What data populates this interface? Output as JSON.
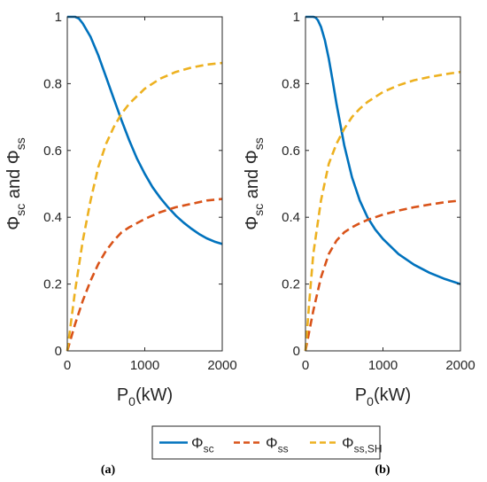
{
  "chart_data": [
    {
      "panel_label": "(a)",
      "type": "line",
      "xlabel": "P",
      "xlabel_sub": "0",
      "xlabel_unit": "(kW)",
      "ylabel_a": "Φ",
      "ylabel_a_sub": "sc",
      "ylabel_mid": " and ",
      "ylabel_b": "Φ",
      "ylabel_b_sub": "ss",
      "xlim": [
        0,
        2000
      ],
      "ylim": [
        0,
        1
      ],
      "xticks": [
        "0",
        "1000",
        "2000"
      ],
      "yticks": [
        "0",
        "0.2",
        "0.4",
        "0.6",
        "0.8",
        "1"
      ],
      "grid": false,
      "series": [
        {
          "name": "Φsc",
          "color": "#0072BD",
          "dash": "solid",
          "x": [
            0,
            100,
            150,
            200,
            300,
            400,
            500,
            600,
            700,
            800,
            900,
            1000,
            1100,
            1200,
            1300,
            1400,
            1500,
            1600,
            1700,
            1800,
            1900,
            2000
          ],
          "y": [
            1.0,
            1.0,
            0.995,
            0.98,
            0.94,
            0.885,
            0.82,
            0.755,
            0.69,
            0.63,
            0.575,
            0.53,
            0.49,
            0.458,
            0.43,
            0.405,
            0.384,
            0.366,
            0.35,
            0.337,
            0.327,
            0.32
          ]
        },
        {
          "name": "Φss",
          "color": "#D95319",
          "dash": "dashed",
          "x": [
            0,
            50,
            100,
            200,
            300,
            400,
            500,
            600,
            700,
            800,
            1000,
            1200,
            1400,
            1600,
            1800,
            2000
          ],
          "y": [
            0.0,
            0.04,
            0.08,
            0.15,
            0.21,
            0.26,
            0.3,
            0.33,
            0.355,
            0.37,
            0.395,
            0.415,
            0.43,
            0.44,
            0.45,
            0.455
          ]
        },
        {
          "name": "Φss,SH",
          "color": "#EDB120",
          "dash": "dashed",
          "x": [
            0,
            50,
            100,
            200,
            300,
            400,
            500,
            600,
            700,
            800,
            1000,
            1200,
            1400,
            1600,
            1800,
            2000
          ],
          "y": [
            0.0,
            0.09,
            0.18,
            0.33,
            0.45,
            0.55,
            0.62,
            0.67,
            0.71,
            0.74,
            0.785,
            0.815,
            0.835,
            0.848,
            0.857,
            0.862
          ]
        }
      ]
    },
    {
      "panel_label": "(b)",
      "type": "line",
      "xlabel": "P",
      "xlabel_sub": "0",
      "xlabel_unit": "(kW)",
      "ylabel_a": "Φ",
      "ylabel_a_sub": "sc",
      "ylabel_mid": " and ",
      "ylabel_b": "Φ",
      "ylabel_b_sub": "ss",
      "xlim": [
        0,
        2000
      ],
      "ylim": [
        0,
        1
      ],
      "xticks": [
        "0",
        "1000",
        "2000"
      ],
      "yticks": [
        "0",
        "0.2",
        "0.4",
        "0.6",
        "0.8",
        "1"
      ],
      "grid": false,
      "series": [
        {
          "name": "Φsc",
          "color": "#0072BD",
          "dash": "solid",
          "x": [
            0,
            100,
            130,
            160,
            200,
            250,
            300,
            350,
            400,
            500,
            600,
            700,
            800,
            900,
            1000,
            1200,
            1400,
            1600,
            1800,
            2000
          ],
          "y": [
            1.0,
            1.0,
            0.998,
            0.99,
            0.97,
            0.93,
            0.875,
            0.81,
            0.74,
            0.615,
            0.52,
            0.45,
            0.4,
            0.363,
            0.335,
            0.29,
            0.258,
            0.234,
            0.215,
            0.2
          ]
        },
        {
          "name": "Φss",
          "color": "#D95319",
          "dash": "dashed",
          "x": [
            0,
            50,
            100,
            200,
            300,
            400,
            500,
            600,
            700,
            800,
            1000,
            1200,
            1400,
            1600,
            1800,
            2000
          ],
          "y": [
            0.0,
            0.06,
            0.12,
            0.22,
            0.29,
            0.33,
            0.355,
            0.37,
            0.382,
            0.392,
            0.408,
            0.42,
            0.43,
            0.438,
            0.445,
            0.45
          ]
        },
        {
          "name": "Φss,SH",
          "color": "#EDB120",
          "dash": "dashed",
          "x": [
            0,
            50,
            100,
            200,
            300,
            400,
            500,
            600,
            700,
            800,
            1000,
            1200,
            1400,
            1600,
            1800,
            2000
          ],
          "y": [
            0.0,
            0.15,
            0.29,
            0.45,
            0.56,
            0.62,
            0.665,
            0.7,
            0.725,
            0.745,
            0.775,
            0.795,
            0.81,
            0.82,
            0.828,
            0.835
          ]
        }
      ]
    }
  ],
  "legend": {
    "placement": "bottom-center",
    "entries": [
      {
        "symbol": "Φ",
        "sub": "sc",
        "color": "#0072BD",
        "dash": "solid"
      },
      {
        "symbol": "Φ",
        "sub": "ss",
        "color": "#D95319",
        "dash": "dashed"
      },
      {
        "symbol": "Φ",
        "sub": "ss,SH",
        "color": "#EDB120",
        "dash": "dashed"
      }
    ]
  }
}
